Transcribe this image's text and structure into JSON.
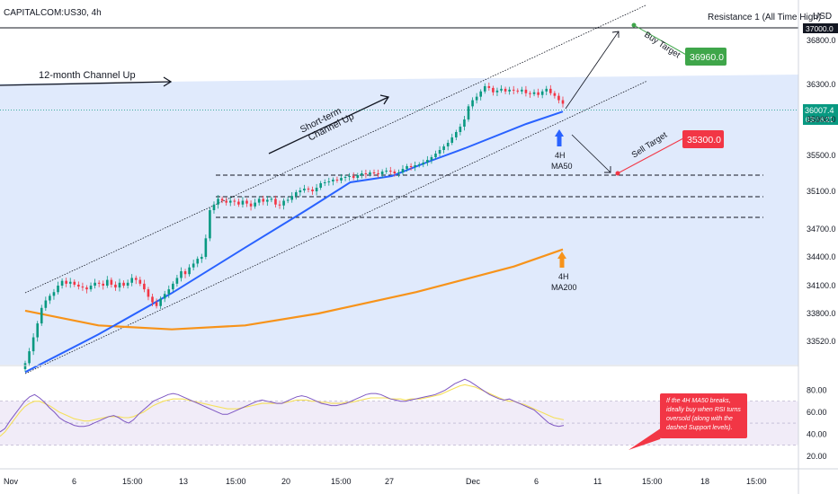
{
  "header": {
    "symbol": "CAPITALCOM:US30, 4h",
    "resistance_label": "Resistance 1 (All Time High)",
    "currency": "USD",
    "resistance_price": "37000.0"
  },
  "price_badge": {
    "price": "36007.4",
    "countdown": "03:56:21"
  },
  "annotations": {
    "channel_12m": "12-month Channel Up",
    "channel_short_1": "Short-term",
    "channel_short_2": "Channel Up",
    "buy_target_label": "Buy Target",
    "buy_target_value": "36960.0",
    "sell_target_label": "Sell Target",
    "sell_target_value": "35300.0",
    "ma50_1": "4H",
    "ma50_2": "MA50",
    "ma200_1": "4H",
    "ma200_2": "MA200",
    "note": [
      "If the 4H MA50 breaks,",
      "ideally buy when RSI turns",
      "oversold (along with the",
      "dashed Support levels)."
    ]
  },
  "colors": {
    "up": "#089981",
    "down": "#f23645",
    "ma50": "#2962ff",
    "ma200": "#f7931a",
    "channel_fill": "#dbe6fb",
    "rsi": "#7e57c2",
    "rsi_ma": "#f5e05a",
    "buy_badge": "#3fa64a",
    "sell_badge": "#f23645",
    "up_arrow": "#2962ff",
    "orange_arrow": "#f7931a"
  },
  "chart_data": [
    {
      "type": "candlestick",
      "title": "CAPITALCOM:US30, 4h",
      "ylim": [
        33300,
        37050
      ],
      "y_ticks": [
        33520,
        33800,
        34100,
        34400,
        34700,
        35100,
        35500,
        35900,
        36300,
        36800
      ],
      "y_tick_labels": [
        "33520.0",
        "33800.0",
        "34100.0",
        "34400.0",
        "34700.0",
        "35100.0",
        "35500.0",
        "35900.0",
        "36300.0",
        "36800.0"
      ],
      "x_ticks": [
        "Nov",
        "6",
        "15:00",
        "13",
        "15:00",
        "20",
        "15:00",
        "27",
        "Dec",
        "6",
        "11",
        "15:00",
        "18",
        "15:00"
      ],
      "candles_close": [
        33300,
        33420,
        33560,
        33700,
        33860,
        33940,
        33990,
        34030,
        34100,
        34150,
        34120,
        34140,
        34110,
        34090,
        34080,
        34060,
        34100,
        34130,
        34120,
        34100,
        34160,
        34110,
        34080,
        34130,
        34100,
        34130,
        34180,
        34160,
        34120,
        34060,
        33980,
        33920,
        33880,
        33960,
        34010,
        34060,
        34120,
        34180,
        34250,
        34220,
        34290,
        34330,
        34380,
        34400,
        34600,
        34900,
        34960,
        35020,
        35000,
        34980,
        35000,
        34990,
        34960,
        35000,
        34970,
        34940,
        34980,
        35020,
        34990,
        35010,
        35020,
        34960,
        34950,
        35000,
        35010,
        35050,
        35090,
        35110,
        35130,
        35120,
        35100,
        35140,
        35190,
        35200,
        35210,
        35230,
        35220,
        35250,
        35260,
        35270,
        35250,
        35280,
        35300,
        35290,
        35310,
        35300,
        35290,
        35320,
        35330,
        35320,
        35300,
        35310,
        35350,
        35380,
        35370,
        35390,
        35400,
        35420,
        35450,
        35480,
        35520,
        35560,
        35600,
        35640,
        35700,
        35760,
        35820,
        35900,
        36050,
        36120,
        36160,
        36220,
        36280,
        36260,
        36210,
        36230,
        36250,
        36220,
        36240,
        36230,
        36220,
        36240,
        36200,
        36190,
        36210,
        36180,
        36220,
        36250,
        36200,
        36170,
        36120,
        36080
      ],
      "ma50": [
        [
          0,
          33210
        ],
        [
          30,
          33590
        ],
        [
          60,
          34020
        ],
        [
          90,
          34500
        ],
        [
          115,
          34900
        ],
        [
          133,
          35200
        ],
        [
          150,
          35270
        ],
        [
          165,
          35430
        ],
        [
          180,
          35580
        ],
        [
          205,
          35850
        ],
        [
          220,
          35990
        ]
      ],
      "ma200": [
        [
          0,
          33830
        ],
        [
          30,
          33680
        ],
        [
          60,
          33640
        ],
        [
          90,
          33680
        ],
        [
          120,
          33800
        ],
        [
          160,
          34030
        ],
        [
          200,
          34300
        ],
        [
          220,
          34480
        ]
      ],
      "support_levels": [
        35300,
        35060,
        34840
      ],
      "buy_target": 36960.0,
      "sell_target": 35300.0,
      "current_price": 36007.4,
      "resistance": 37000.0
    },
    {
      "type": "line",
      "title": "RSI",
      "ylim": [
        10,
        100
      ],
      "y_ticks": [
        20,
        40,
        60,
        80
      ],
      "y_tick_labels": [
        "20.00",
        "40.00",
        "60.00",
        "80.00"
      ],
      "band": [
        30,
        70
      ],
      "rsi": [
        42,
        45,
        52,
        58,
        64,
        70,
        74,
        76,
        73,
        69,
        64,
        60,
        55,
        52,
        50,
        48,
        47,
        47,
        48,
        50,
        52,
        54,
        56,
        57,
        55,
        52,
        50,
        53,
        58,
        62,
        66,
        70,
        72,
        74,
        76,
        77,
        76,
        74,
        72,
        70,
        68,
        66,
        64,
        62,
        60,
        58,
        58,
        60,
        62,
        64,
        66,
        68,
        70,
        71,
        70,
        69,
        68,
        68,
        70,
        72,
        74,
        75,
        74,
        72,
        70,
        68,
        67,
        66,
        66,
        67,
        68,
        70,
        72,
        74,
        76,
        77,
        77,
        76,
        74,
        72,
        71,
        70,
        70,
        71,
        72,
        73,
        74,
        75,
        76,
        78,
        80,
        83,
        86,
        88,
        90,
        88,
        85,
        82,
        79,
        76,
        74,
        72,
        71,
        72,
        70,
        68,
        66,
        64,
        62,
        58,
        54,
        50,
        48,
        47,
        48
      ],
      "rsi_ma": [
        38,
        42,
        48,
        54,
        60,
        65,
        68,
        70,
        70,
        68,
        66,
        63,
        60,
        58,
        56,
        54,
        53,
        52,
        52,
        53,
        54,
        55,
        56,
        56,
        56,
        55,
        55,
        56,
        58,
        60,
        63,
        66,
        68,
        70,
        71,
        72,
        72,
        72,
        71,
        70,
        69,
        68,
        67,
        66,
        65,
        64,
        63,
        63,
        63,
        64,
        65,
        66,
        67,
        68,
        68,
        68,
        68,
        68,
        69,
        70,
        71,
        71,
        71,
        70,
        70,
        69,
        69,
        68,
        68,
        68,
        69,
        69,
        70,
        71,
        72,
        73,
        73,
        73,
        73,
        72,
        72,
        72,
        71,
        72,
        72,
        72,
        73,
        74,
        75,
        76,
        78,
        80,
        82,
        84,
        85,
        84,
        83,
        81,
        79,
        77,
        75,
        73,
        71,
        70,
        70,
        68,
        67,
        65,
        63,
        61,
        59,
        57,
        55,
        54,
        53
      ],
      "note_text": "If the 4H MA50 breaks, ideally buy when RSI turns oversold (along with the dashed Support levels)."
    }
  ]
}
